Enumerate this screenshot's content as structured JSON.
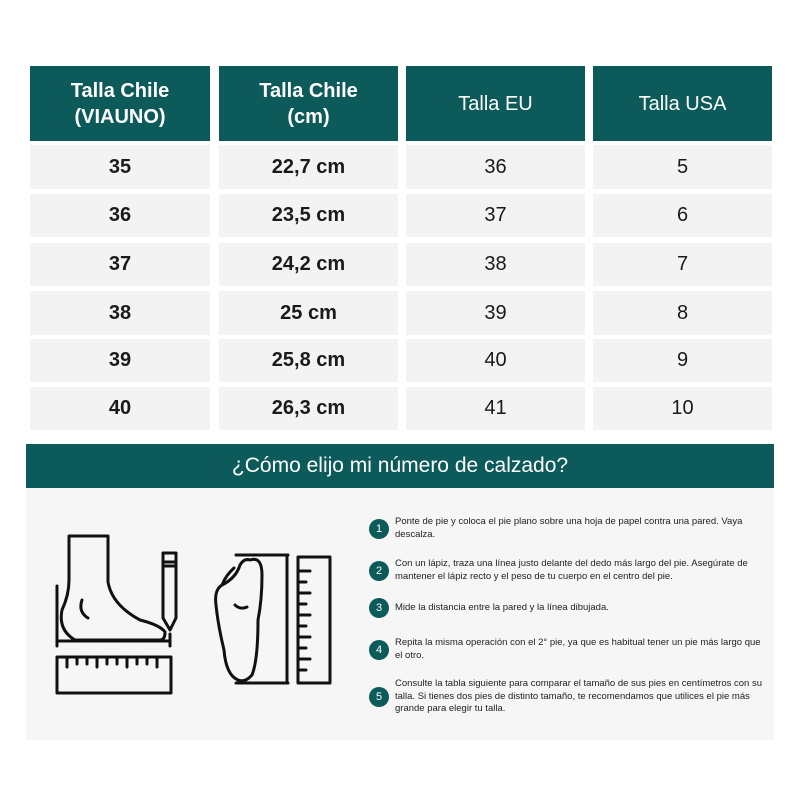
{
  "table": {
    "headers": [
      "Talla Chile (VIAUNO)",
      "Talla Chile (cm)",
      "Talla EU",
      "Talla USA"
    ],
    "header_lines": [
      [
        "Talla Chile",
        "(VIAUNO)"
      ],
      [
        "Talla Chile",
        "(cm)"
      ],
      [
        "Talla EU"
      ],
      [
        "Talla USA"
      ]
    ],
    "rows": [
      [
        "35",
        "22,7 cm",
        "36",
        "5"
      ],
      [
        "36",
        "23,5 cm",
        "37",
        "6"
      ],
      [
        "37",
        "24,2 cm",
        "38",
        "7"
      ],
      [
        "38",
        "25 cm",
        "39",
        "8"
      ],
      [
        "39",
        "25,8 cm",
        "40",
        "9"
      ],
      [
        "40",
        "26,3 cm",
        "41",
        "10"
      ]
    ]
  },
  "guide": {
    "title": "¿Cómo elijo mi número de calzado?",
    "steps": [
      {
        "n": "1",
        "text": "Ponte de pie y coloca el pie plano sobre una hoja de papel contra una pared. Vaya descalza."
      },
      {
        "n": "2",
        "text": "Con un lápiz, traza una línea justo delante del  dedo más largo del pie. Asegúrate de mantener  el lápiz recto y el peso de tu cuerpo en el centro del pie."
      },
      {
        "n": "3",
        "text": "Mide la distancia entre la pared y la línea dibujada."
      },
      {
        "n": "4",
        "text": "Repita la misma operación con el 2° pie, ya que es habitual tener un pie más largo que el otro."
      },
      {
        "n": "5",
        "text": "Consulte la tabla siguiente para comparar el tamaño de sus pies en centímetros con su talla. Si tienes dos pies de distinto tamaño, te recomendamos que utilices el pie más grande para elegir tu talla."
      }
    ]
  },
  "colors": {
    "accent": "#0d5a5a",
    "row_bg": "#f3f3f3"
  },
  "icons": [
    "foot-side-measure-icon",
    "pencil-icon",
    "ruler-icon",
    "foot-sole-icon"
  ]
}
